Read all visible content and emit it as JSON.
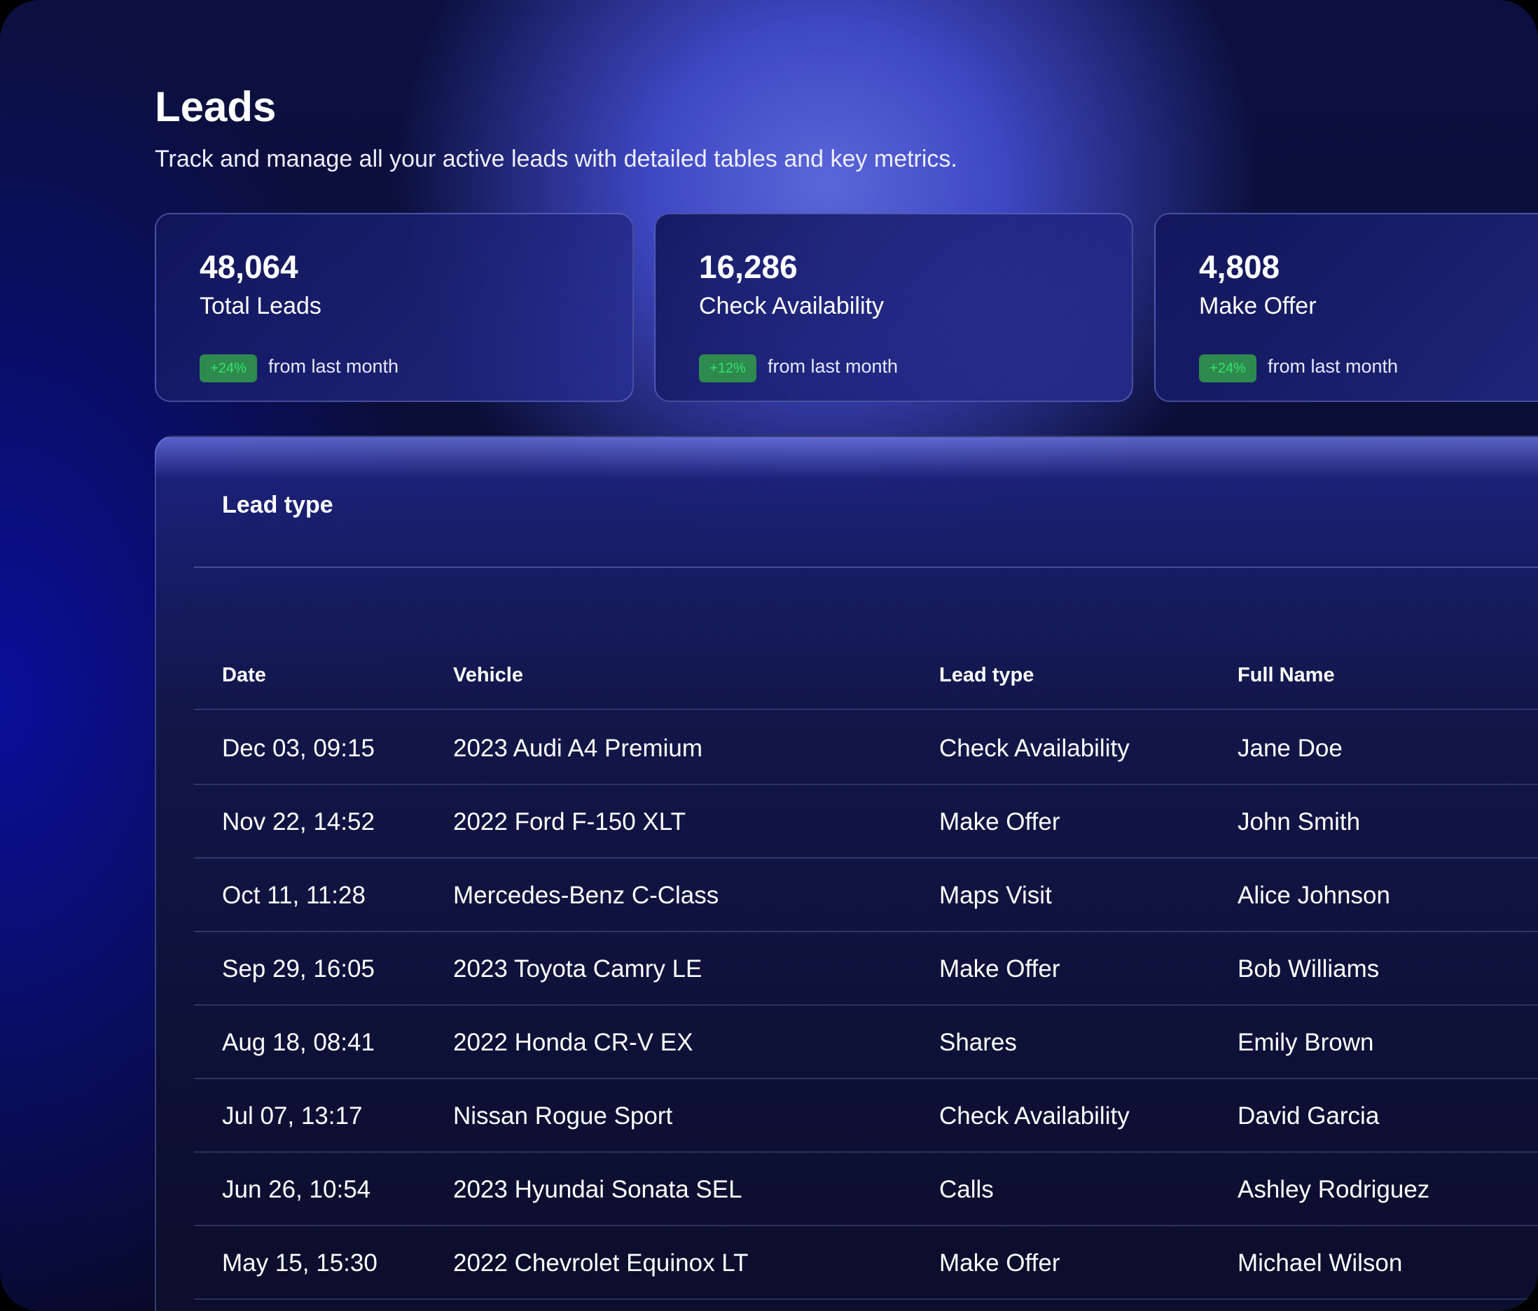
{
  "header": {
    "title": "Leads",
    "subtitle": "Track and manage all your active leads with detailed tables and key metrics."
  },
  "cards": [
    {
      "value": "48,064",
      "label": "Total Leads",
      "change": "+24%",
      "change_note": "from last month"
    },
    {
      "value": "16,286",
      "label": "Check Availability",
      "change": "+12%",
      "change_note": "from last month"
    },
    {
      "value": "4,808",
      "label": "Make Offer",
      "change": "+24%",
      "change_note": "from last month"
    }
  ],
  "colors": {
    "badge_bg": "#2e8a4e",
    "badge_text": "#35e36a",
    "accent": "#4f5ad6"
  },
  "table": {
    "title": "Lead type",
    "columns": [
      "Date",
      "Vehicle",
      "Lead type",
      "Full Name"
    ],
    "rows": [
      [
        "Dec 03, 09:15",
        "2023 Audi A4 Premium",
        "Check Availability",
        "Jane Doe"
      ],
      [
        "Nov 22, 14:52",
        "2022 Ford F-150 XLT",
        "Make Offer",
        "John Smith"
      ],
      [
        "Oct 11, 11:28",
        "Mercedes-Benz C-Class",
        "Maps Visit",
        "Alice Johnson"
      ],
      [
        "Sep 29, 16:05",
        "2023 Toyota Camry LE",
        "Make Offer",
        "Bob Williams"
      ],
      [
        "Aug 18, 08:41",
        "2022 Honda CR-V EX",
        "Shares",
        "Emily Brown"
      ],
      [
        "Jul 07, 13:17",
        "Nissan Rogue Sport",
        "Check Availability",
        "David Garcia"
      ],
      [
        "Jun 26, 10:54",
        "2023 Hyundai Sonata SEL",
        "Calls",
        "Ashley Rodriguez"
      ],
      [
        "May 15, 15:30",
        "2022 Chevrolet Equinox LT",
        "Make Offer",
        "Michael Wilson"
      ]
    ]
  }
}
